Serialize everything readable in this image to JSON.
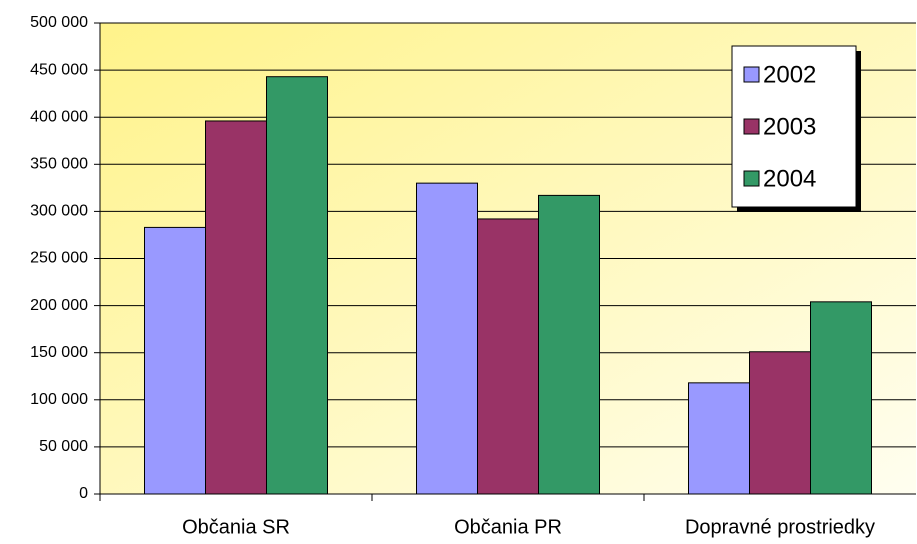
{
  "chart_data": {
    "type": "bar",
    "categories": [
      "Občania SR",
      "Občania PR",
      "Dopravné prostriedky"
    ],
    "series": [
      {
        "name": "2002",
        "color": "#9999ff",
        "values": [
          283000,
          330000,
          118000
        ]
      },
      {
        "name": "2003",
        "color": "#993366",
        "values": [
          396000,
          292000,
          151000
        ]
      },
      {
        "name": "2004",
        "color": "#339966",
        "values": [
          443000,
          317000,
          204000
        ]
      }
    ],
    "ylim": [
      0,
      500000
    ],
    "yticks": [
      0,
      {
        "value": 50000,
        "label": "50 000"
      },
      {
        "value": 100000,
        "label": "100 000"
      },
      {
        "value": 150000,
        "label": "150 000"
      },
      {
        "value": 200000,
        "label": "200 000"
      },
      {
        "value": 250000,
        "label": "250 000"
      },
      {
        "value": 300000,
        "label": "300 000"
      },
      {
        "value": 350000,
        "label": "350 000"
      },
      {
        "value": 400000,
        "label": "400 000"
      },
      {
        "value": 450000,
        "label": "450 000"
      },
      {
        "value": 500000,
        "label": "500 000"
      }
    ],
    "grid": true,
    "legend": "top-right"
  }
}
